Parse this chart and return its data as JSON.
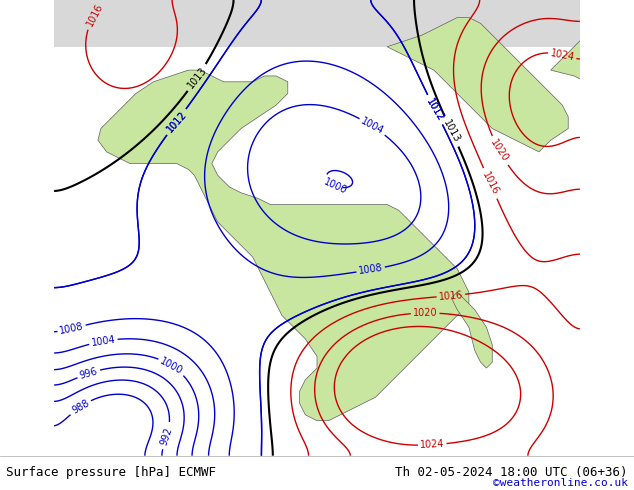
{
  "title_left": "Surface pressure [hPa] ECMWF",
  "title_right": "Th 02-05-2024 18:00 UTC (06+36)",
  "copyright": "©weatheronline.co.uk",
  "bg_color_ocean": "#f0f0f0",
  "bg_color_land_green": "#c8e6a0",
  "bg_color_land_gray": "#d0d0d0",
  "text_color_black": "#000000",
  "text_color_blue": "#0000cc",
  "text_color_red": "#cc0000",
  "text_color_copyright": "#0000cc",
  "bottom_bar_color": "#e8e8e8",
  "contour_blue": "#0000cc",
  "contour_red": "#cc0000",
  "contour_black": "#000000",
  "contour_gray": "#808080",
  "fig_width": 6.34,
  "fig_height": 4.9,
  "dpi": 100
}
